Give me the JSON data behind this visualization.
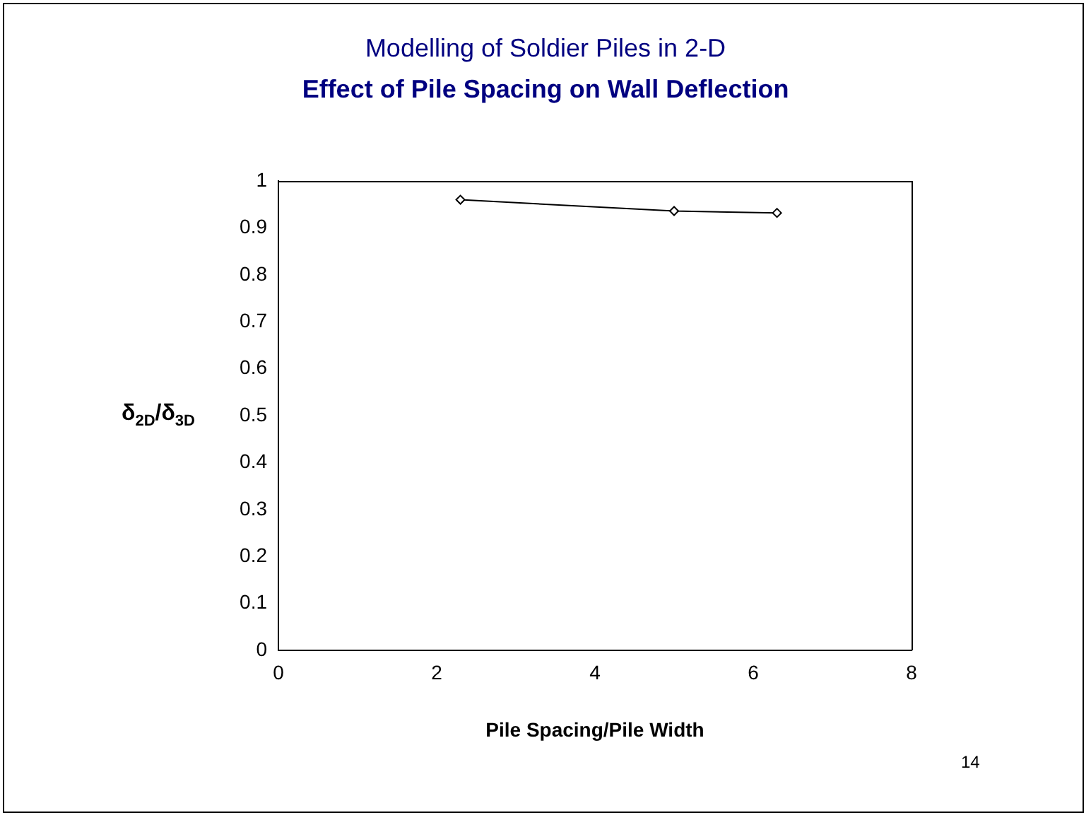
{
  "chart_data": {
    "type": "line",
    "title": "Modelling of Soldier Piles in 2-D",
    "subtitle": "Effect of Pile Spacing on Wall Deflection",
    "xlabel": "Pile Spacing/Pile Width",
    "ylabel": "δ$_{2D}$/δ$_{3D}$",
    "annotations": [
      "14"
    ],
    "x": [
      2.3,
      5,
      6.3
    ],
    "series": [
      {
        "color": "#000000",
        "values": [
          0.96,
          0.936,
          0.932
        ]
      }
    ],
    "xlim": [
      0,
      8
    ],
    "xticks": [
      0,
      2,
      4,
      6,
      8
    ],
    "ylim": [
      0,
      1
    ],
    "yticks": [
      0,
      0.1,
      0.2,
      0.3,
      0.4,
      0.5,
      0.6,
      0.7,
      0.8,
      0.9,
      1
    ],
    "grid": false,
    "legend": false,
    "marker": "diamond",
    "line_style": "solid"
  }
}
